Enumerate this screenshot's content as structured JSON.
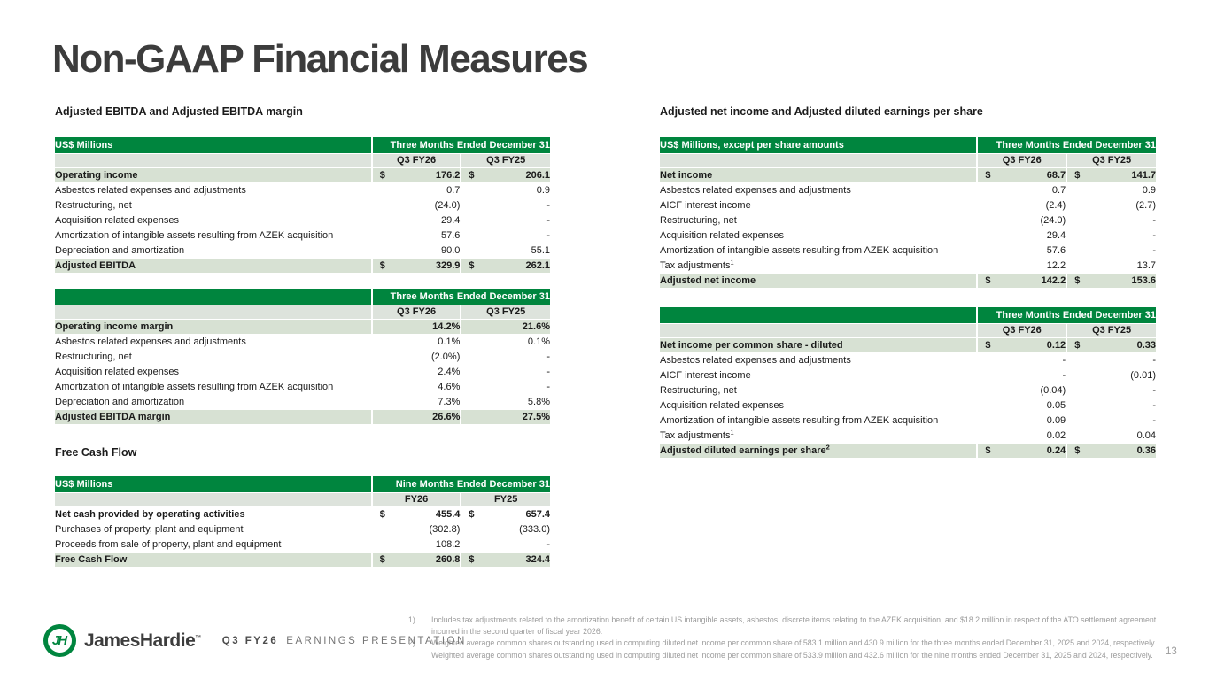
{
  "page": {
    "title": "Non-GAAP Financial Measures",
    "page_number": "13"
  },
  "colors": {
    "brand_green": "#00853E",
    "row_highlight": "#D7E1D3",
    "row_subheader": "#DDE3DC"
  },
  "left": {
    "section1_heading": "Adjusted EBITDA and Adjusted EBITDA margin",
    "section2_heading": "Free Cash Flow"
  },
  "right": {
    "section_heading": "Adjusted net income and Adjusted diluted earnings per share"
  },
  "tables": {
    "ebitda": {
      "header_left": "US$ Millions",
      "header_right": "Three Months Ended December 31",
      "col1": "Q3 FY26",
      "col2": "Q3 FY25",
      "rows": [
        {
          "label": "Operating income",
          "cur1": "$",
          "v1": "176.2",
          "cur2": "$",
          "v2": "206.1",
          "style": "highlight"
        },
        {
          "label": "Asbestos related expenses and adjustments",
          "v1": "0.7",
          "v2": "0.9"
        },
        {
          "label": "Restructuring, net",
          "v1": "(24.0)",
          "v2": "-"
        },
        {
          "label": "Acquisition related expenses",
          "v1": "29.4",
          "v2": "-"
        },
        {
          "label": "Amortization of intangible assets resulting from AZEK acquisition",
          "v1": "57.6",
          "v2": "-"
        },
        {
          "label": "Depreciation and amortization",
          "v1": "90.0",
          "v2": "55.1"
        },
        {
          "label": "Adjusted EBITDA",
          "cur1": "$",
          "v1": "329.9",
          "cur2": "$",
          "v2": "262.1",
          "style": "highlight"
        }
      ]
    },
    "ebitda_margin": {
      "header_left": "",
      "header_right": "Three Months Ended December 31",
      "col1": "Q3 FY26",
      "col2": "Q3 FY25",
      "rows": [
        {
          "label": "Operating income margin",
          "v1": "14.2%",
          "v2": "21.6%",
          "style": "highlight"
        },
        {
          "label": "Asbestos related expenses and adjustments",
          "v1": "0.1%",
          "v2": "0.1%"
        },
        {
          "label": "Restructuring, net",
          "v1": "(2.0%)",
          "v2": "-"
        },
        {
          "label": "Acquisition related expenses",
          "v1": "2.4%",
          "v2": "-"
        },
        {
          "label": "Amortization of intangible assets resulting from AZEK acquisition",
          "v1": "4.6%",
          "v2": "-"
        },
        {
          "label": "Depreciation and amortization",
          "v1": "7.3%",
          "v2": "5.8%"
        },
        {
          "label": "Adjusted EBITDA margin",
          "v1": "26.6%",
          "v2": "27.5%",
          "style": "highlight"
        }
      ]
    },
    "fcf": {
      "header_left": "US$ Millions",
      "header_right": "Nine Months Ended December 31",
      "col1": "FY26",
      "col2": "FY25",
      "rows": [
        {
          "label": "Net cash provided by operating activities",
          "cur1": "$",
          "v1": "455.4",
          "cur2": "$",
          "v2": "657.4",
          "style": "bold"
        },
        {
          "label": "Purchases of property, plant and equipment",
          "v1": "(302.8)",
          "v2": "(333.0)"
        },
        {
          "label": "Proceeds from sale of property, plant and equipment",
          "v1": "108.2",
          "v2": "-"
        },
        {
          "label": "Free Cash Flow",
          "cur1": "$",
          "v1": "260.8",
          "cur2": "$",
          "v2": "324.4",
          "style": "highlight"
        }
      ]
    },
    "net_income": {
      "header_left": "US$ Millions, except per share amounts",
      "header_right": "Three Months Ended December 31",
      "col1": "Q3 FY26",
      "col2": "Q3 FY25",
      "rows": [
        {
          "label": "Net income",
          "cur1": "$",
          "v1": "68.7",
          "cur2": "$",
          "v2": "141.7",
          "style": "highlight"
        },
        {
          "label": "Asbestos related expenses and adjustments",
          "v1": "0.7",
          "v2": "0.9"
        },
        {
          "label": "AICF interest income",
          "v1": "(2.4)",
          "v2": "(2.7)"
        },
        {
          "label": "Restructuring, net",
          "v1": "(24.0)",
          "v2": "-"
        },
        {
          "label": "Acquisition related expenses",
          "v1": "29.4",
          "v2": "-"
        },
        {
          "label": "Amortization of intangible assets resulting from AZEK acquisition",
          "v1": "57.6",
          "v2": "-"
        },
        {
          "label": "Tax adjustments",
          "sup": "1",
          "v1": "12.2",
          "v2": "13.7"
        },
        {
          "label": "Adjusted net income",
          "cur1": "$",
          "v1": "142.2",
          "cur2": "$",
          "v2": "153.6",
          "style": "highlight"
        }
      ]
    },
    "eps": {
      "header_left": "",
      "header_right": "Three Months Ended December 31",
      "col1": "Q3 FY26",
      "col2": "Q3 FY25",
      "rows": [
        {
          "label": "Net income per common share - diluted",
          "cur1": "$",
          "v1": "0.12",
          "cur2": "$",
          "v2": "0.33",
          "style": "highlight"
        },
        {
          "label": "Asbestos related expenses and adjustments",
          "v1": "-",
          "v2": "-"
        },
        {
          "label": "AICF interest income",
          "v1": "-",
          "v2": "(0.01)"
        },
        {
          "label": "Restructuring, net",
          "v1": "(0.04)",
          "v2": "-"
        },
        {
          "label": "Acquisition related expenses",
          "v1": "0.05",
          "v2": "-"
        },
        {
          "label": "Amortization of intangible assets resulting from AZEK acquisition",
          "v1": "0.09",
          "v2": "-"
        },
        {
          "label": "Tax adjustments",
          "sup": "1",
          "v1": "0.02",
          "v2": "0.04"
        },
        {
          "label": "Adjusted diluted earnings per share",
          "sup": "2",
          "cur1": "$",
          "v1": "0.24",
          "cur2": "$",
          "v2": "0.36",
          "style": "highlight"
        }
      ]
    }
  },
  "footnotes": {
    "items": [
      {
        "num": "1)",
        "text": "Includes tax adjustments related to the amortization benefit of certain US intangible assets, asbestos, discrete items relating to the AZEK acquisition, and $18.2 million in respect of the ATO settlement agreement incurred in the second quarter of fiscal year 2026."
      },
      {
        "num": "2)",
        "text": "Weighted average common shares outstanding used in computing diluted net income per common share of 583.1 million and 430.9 million for the three months ended December 31, 2025 and 2024, respectively. Weighted average common shares outstanding used in computing diluted net income per common share of 533.9 million and 432.6 million for the nine months ended December 31, 2025 and 2024, respectively."
      }
    ]
  },
  "footer": {
    "logo_monogram": "JH",
    "brand": "JamesHardie",
    "trademark": "™",
    "quarter": "Q3 FY26",
    "label": "EARNINGS PRESENTATION"
  }
}
